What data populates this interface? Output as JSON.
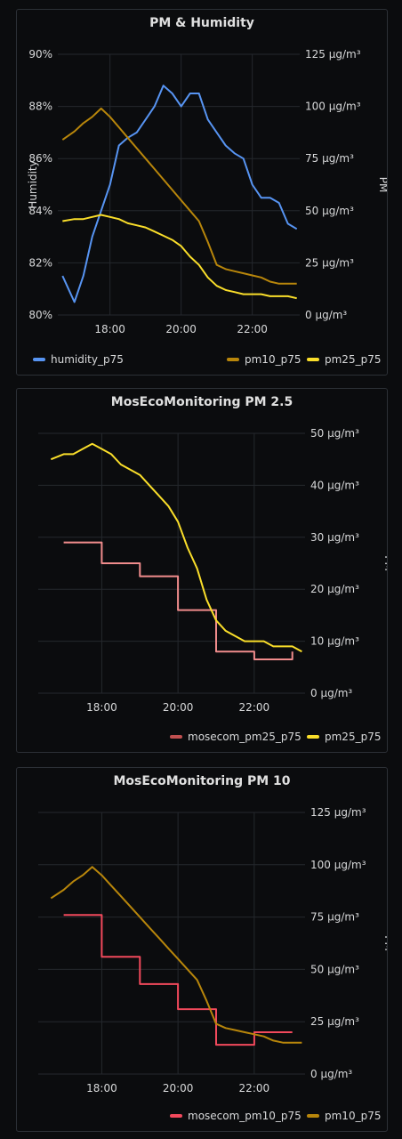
{
  "colors": {
    "humidity": "#5794f2",
    "pm10": "#b8860b",
    "pm25": "#fade2a",
    "mosecom_pm25": "#f08c8c",
    "mosecom_pm10": "#f2495c"
  },
  "panels": [
    {
      "title": "PM & Humidity",
      "legend": [
        "humidity_p75",
        "pm10_p75",
        "pm25_p75"
      ]
    },
    {
      "title": "MosEcoMonitoring PM 2.5",
      "legend": [
        "mosecom_pm25_p75",
        "pm25_p75"
      ]
    },
    {
      "title": "MosEcoMonitoring PM 10",
      "legend": [
        "mosecom_pm10_p75",
        "pm10_p75"
      ]
    }
  ],
  "chart_data": [
    {
      "type": "line",
      "title": "PM & Humidity",
      "x_ticks": [
        "18:00",
        "20:00",
        "22:00"
      ],
      "y_left": {
        "label": "Humidity",
        "ticks": [
          "80%",
          "82%",
          "84%",
          "86%",
          "88%",
          "90%"
        ],
        "range": [
          80,
          90
        ]
      },
      "y_right": {
        "label": "PM",
        "ticks": [
          "0 µg/m³",
          "25 µg/m³",
          "50 µg/m³",
          "75 µg/m³",
          "100 µg/m³",
          "125 µg/m³"
        ],
        "range": [
          0,
          125
        ]
      },
      "grid": true,
      "legend_position": "bottom",
      "series": [
        {
          "name": "humidity_p75",
          "axis": "left",
          "x": [
            "16:40",
            "17:00",
            "17:15",
            "17:30",
            "17:45",
            "18:00",
            "18:15",
            "18:30",
            "18:45",
            "19:00",
            "19:15",
            "19:30",
            "19:45",
            "20:00",
            "20:15",
            "20:30",
            "20:45",
            "21:00",
            "21:15",
            "21:30",
            "21:45",
            "22:00",
            "22:15",
            "22:30",
            "22:45",
            "23:00",
            "23:15"
          ],
          "y": [
            81.5,
            80.5,
            81.5,
            83.0,
            84.0,
            85.0,
            86.5,
            86.8,
            87.0,
            87.5,
            88.0,
            88.8,
            88.5,
            88.0,
            88.5,
            88.5,
            87.5,
            87.0,
            86.5,
            86.2,
            86.0,
            85.0,
            84.5,
            84.5,
            84.3,
            83.5,
            83.3
          ]
        },
        {
          "name": "pm10_p75",
          "axis": "right",
          "x": [
            "16:40",
            "17:00",
            "17:15",
            "17:30",
            "17:45",
            "18:00",
            "18:15",
            "18:30",
            "18:45",
            "19:00",
            "19:15",
            "19:30",
            "19:45",
            "20:00",
            "20:15",
            "20:30",
            "20:45",
            "21:00",
            "21:15",
            "21:30",
            "21:45",
            "22:00",
            "22:15",
            "22:30",
            "22:45",
            "23:00",
            "23:15"
          ],
          "y": [
            84,
            88,
            92,
            95,
            99,
            95,
            90,
            85,
            80,
            75,
            70,
            65,
            60,
            55,
            50,
            45,
            35,
            24,
            22,
            21,
            20,
            19,
            18,
            16,
            15,
            15,
            15
          ]
        },
        {
          "name": "pm25_p75",
          "axis": "right",
          "x": [
            "16:40",
            "17:00",
            "17:15",
            "17:30",
            "17:45",
            "18:00",
            "18:15",
            "18:30",
            "18:45",
            "19:00",
            "19:15",
            "19:30",
            "19:45",
            "20:00",
            "20:15",
            "20:30",
            "20:45",
            "21:00",
            "21:15",
            "21:30",
            "21:45",
            "22:00",
            "22:15",
            "22:30",
            "22:45",
            "23:00",
            "23:15"
          ],
          "y": [
            45,
            46,
            46,
            47,
            48,
            47,
            46,
            44,
            43,
            42,
            40,
            38,
            36,
            33,
            28,
            24,
            18,
            14,
            12,
            11,
            10,
            10,
            10,
            9,
            9,
            9,
            8
          ]
        }
      ]
    },
    {
      "type": "line",
      "title": "MosEcoMonitoring PM 2.5",
      "x_ticks": [
        "18:00",
        "20:00",
        "22:00"
      ],
      "y_right": {
        "label": "PM",
        "ticks": [
          "0 µg/m³",
          "10 µg/m³",
          "20 µg/m³",
          "30 µg/m³",
          "40 µg/m³",
          "50 µg/m³"
        ],
        "range": [
          0,
          50
        ]
      },
      "grid": true,
      "legend_position": "bottom",
      "series": [
        {
          "name": "mosecom_pm25_p75",
          "step": true,
          "x": [
            "17:00",
            "18:00",
            "19:00",
            "20:00",
            "21:00",
            "22:00",
            "23:00"
          ],
          "y": [
            29,
            25,
            22.5,
            16,
            8,
            6.5,
            8
          ]
        },
        {
          "name": "pm25_p75",
          "x": [
            "16:40",
            "17:00",
            "17:15",
            "17:30",
            "17:45",
            "18:00",
            "18:15",
            "18:30",
            "18:45",
            "19:00",
            "19:15",
            "19:30",
            "19:45",
            "20:00",
            "20:15",
            "20:30",
            "20:45",
            "21:00",
            "21:15",
            "21:30",
            "21:45",
            "22:00",
            "22:15",
            "22:30",
            "22:45",
            "23:00",
            "23:15"
          ],
          "y": [
            45,
            46,
            46,
            47,
            48,
            47,
            46,
            44,
            43,
            42,
            40,
            38,
            36,
            33,
            28,
            24,
            18,
            14,
            12,
            11,
            10,
            10,
            10,
            9,
            9,
            9,
            8
          ]
        }
      ]
    },
    {
      "type": "line",
      "title": "MosEcoMonitoring PM 10",
      "x_ticks": [
        "18:00",
        "20:00",
        "22:00"
      ],
      "y_right": {
        "label": "PM",
        "ticks": [
          "0 µg/m³",
          "25 µg/m³",
          "50 µg/m³",
          "75 µg/m³",
          "100 µg/m³",
          "125 µg/m³"
        ],
        "range": [
          0,
          125
        ]
      },
      "grid": true,
      "legend_position": "bottom",
      "series": [
        {
          "name": "mosecom_pm10_p75",
          "step": true,
          "x": [
            "17:00",
            "18:00",
            "19:00",
            "20:00",
            "21:00",
            "22:00",
            "23:00"
          ],
          "y": [
            76,
            56,
            43,
            31,
            14,
            20,
            20
          ]
        },
        {
          "name": "pm10_p75",
          "x": [
            "16:40",
            "17:00",
            "17:15",
            "17:30",
            "17:45",
            "18:00",
            "18:15",
            "18:30",
            "18:45",
            "19:00",
            "19:15",
            "19:30",
            "19:45",
            "20:00",
            "20:15",
            "20:30",
            "20:45",
            "21:00",
            "21:15",
            "21:30",
            "21:45",
            "22:00",
            "22:15",
            "22:30",
            "22:45",
            "23:00",
            "23:15"
          ],
          "y": [
            84,
            88,
            92,
            95,
            99,
            95,
            90,
            85,
            80,
            75,
            70,
            65,
            60,
            55,
            50,
            45,
            35,
            24,
            22,
            21,
            20,
            19,
            18,
            16,
            15,
            15,
            15
          ]
        }
      ]
    }
  ]
}
